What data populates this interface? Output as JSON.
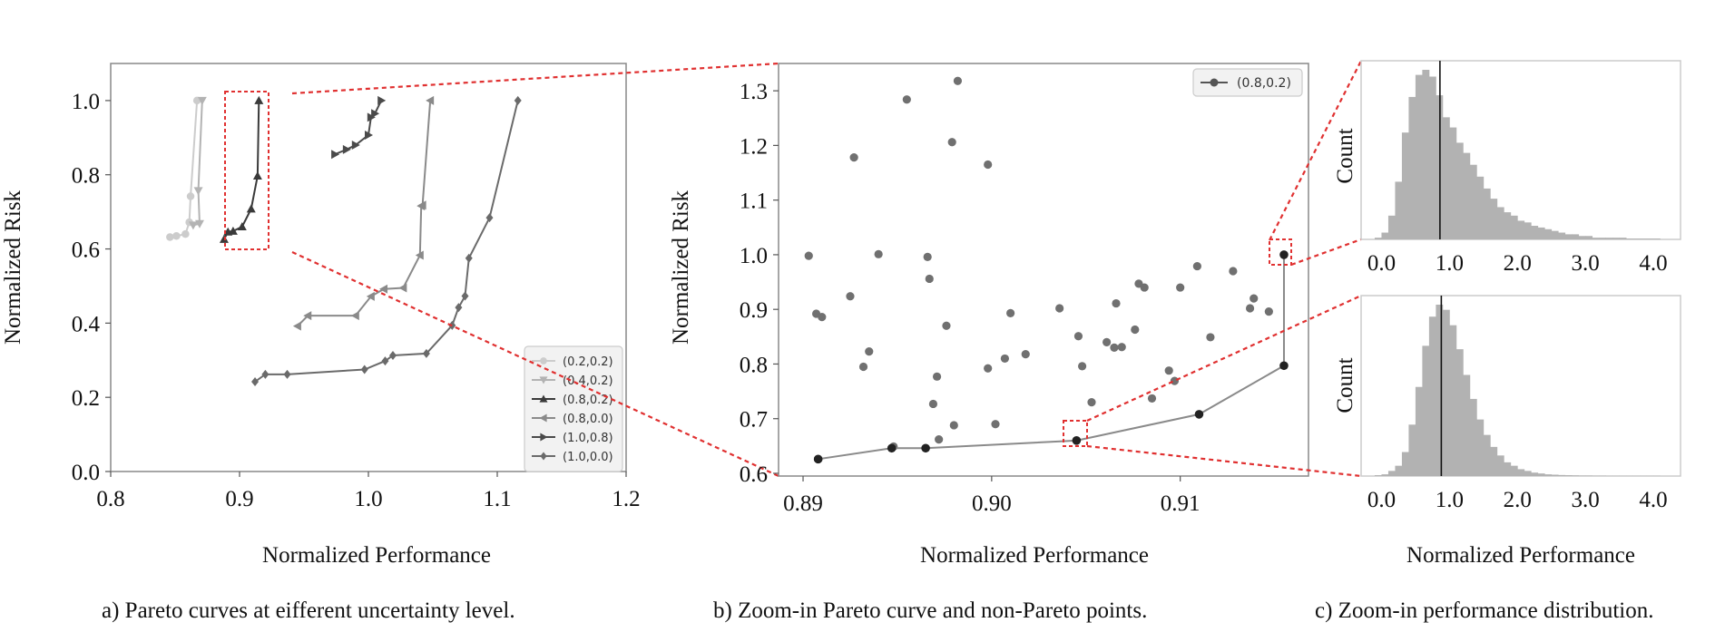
{
  "captions": {
    "a": "a) Pareto curves at eifferent uncertainty level.",
    "b": "b) Zoom-in Pareto curve and non-Pareto points.",
    "c": "c) Zoom-in performance distribution."
  },
  "chart_data": [
    {
      "id": "a",
      "type": "line",
      "xlabel": "Normalized Performance",
      "ylabel": "Normalized Risk",
      "xlim": [
        0.8,
        1.2
      ],
      "ylim": [
        0.0,
        1.1
      ],
      "xticks": [
        "0.8",
        "0.9",
        "1.0",
        "1.1",
        "1.2"
      ],
      "yticks": [
        "0.0",
        "0.2",
        "0.4",
        "0.6",
        "0.8",
        "1.0"
      ],
      "grid": false,
      "legend_position": "bottom-right",
      "series": [
        {
          "name": "(0.2,0.2)",
          "marker": "circle",
          "color": "#cccccc",
          "points": [
            [
              0.846,
              0.632
            ],
            [
              0.851,
              0.635
            ],
            [
              0.858,
              0.64
            ],
            [
              0.861,
              0.672
            ],
            [
              0.862,
              0.742
            ],
            [
              0.867,
              1.0
            ]
          ]
        },
        {
          "name": "(0.4,0.2)",
          "marker": "triangle-down",
          "color": "#b3b3b3",
          "points": [
            [
              0.864,
              0.664
            ],
            [
              0.869,
              0.668
            ],
            [
              0.868,
              0.757
            ],
            [
              0.871,
              1.0
            ]
          ]
        },
        {
          "name": "(0.8,0.2)",
          "marker": "triangle-up",
          "color": "#3a3a3a",
          "points": [
            [
              0.888,
              0.626
            ],
            [
              0.891,
              0.646
            ],
            [
              0.895,
              0.648
            ],
            [
              0.902,
              0.66
            ],
            [
              0.909,
              0.708
            ],
            [
              0.914,
              0.797
            ],
            [
              0.915,
              1.0
            ]
          ]
        },
        {
          "name": "(0.8,0.0)",
          "marker": "triangle-left",
          "color": "#8a8a8a",
          "points": [
            [
              0.945,
              0.392
            ],
            [
              0.953,
              0.42
            ],
            [
              0.99,
              0.42
            ],
            [
              1.002,
              0.472
            ],
            [
              1.012,
              0.492
            ],
            [
              1.027,
              0.495
            ],
            [
              1.04,
              0.583
            ],
            [
              1.041,
              0.716
            ],
            [
              1.042,
              0.718
            ],
            [
              1.048,
              1.0
            ]
          ]
        },
        {
          "name": "(1.0,0.8)",
          "marker": "triangle-right",
          "color": "#4a4a4a",
          "points": [
            [
              0.974,
              0.855
            ],
            [
              0.983,
              0.868
            ],
            [
              0.99,
              0.88
            ],
            [
              1.0,
              0.907
            ],
            [
              1.002,
              0.955
            ],
            [
              1.005,
              0.965
            ],
            [
              1.01,
              1.0
            ]
          ]
        },
        {
          "name": "(1.0,0.0)",
          "marker": "diamond",
          "color": "#6a6a6a",
          "points": [
            [
              0.912,
              0.242
            ],
            [
              0.92,
              0.262
            ],
            [
              0.937,
              0.262
            ],
            [
              0.997,
              0.275
            ],
            [
              1.013,
              0.298
            ],
            [
              1.019,
              0.313
            ],
            [
              1.045,
              0.318
            ],
            [
              1.065,
              0.394
            ],
            [
              1.07,
              0.442
            ],
            [
              1.075,
              0.473
            ],
            [
              1.078,
              0.575
            ],
            [
              1.094,
              0.684
            ],
            [
              1.116,
              1.0
            ]
          ]
        }
      ]
    },
    {
      "id": "b",
      "type": "scatter",
      "xlabel": "Normalized Performance",
      "ylabel": "Normalized Risk",
      "xlim": [
        0.8887,
        0.9168
      ],
      "ylim": [
        0.595,
        1.35
      ],
      "xticks": [
        "0.89",
        "0.90",
        "0.91"
      ],
      "yticks": [
        "0.6",
        "0.7",
        "0.8",
        "0.9",
        "1.0",
        "1.1",
        "1.2",
        "1.3"
      ],
      "grid": false,
      "legend_position": "top-right",
      "pareto_series": {
        "name": "(0.8,0.2)",
        "points": [
          [
            0.8908,
            0.626
          ],
          [
            0.8947,
            0.646
          ],
          [
            0.8965,
            0.646
          ],
          [
            0.9045,
            0.66
          ],
          [
            0.911,
            0.708
          ],
          [
            0.9155,
            0.797
          ],
          [
            0.9155,
            1.0
          ]
        ]
      },
      "non_pareto_points": [
        [
          0.8903,
          0.998
        ],
        [
          0.8907,
          0.892
        ],
        [
          0.891,
          0.886
        ],
        [
          0.8925,
          0.924
        ],
        [
          0.8927,
          1.178
        ],
        [
          0.8932,
          0.795
        ],
        [
          0.8935,
          0.823
        ],
        [
          0.894,
          1.001
        ],
        [
          0.8948,
          0.649
        ],
        [
          0.8955,
          1.284
        ],
        [
          0.8966,
          0.996
        ],
        [
          0.8967,
          0.956
        ],
        [
          0.8969,
          0.727
        ],
        [
          0.8971,
          0.777
        ],
        [
          0.8972,
          0.662
        ],
        [
          0.8976,
          0.87
        ],
        [
          0.8979,
          1.206
        ],
        [
          0.898,
          0.688
        ],
        [
          0.8982,
          1.318
        ],
        [
          0.8998,
          1.165
        ],
        [
          0.8998,
          0.792
        ],
        [
          0.9002,
          0.69
        ],
        [
          0.9007,
          0.81
        ],
        [
          0.901,
          0.893
        ],
        [
          0.9018,
          0.818
        ],
        [
          0.9036,
          0.902
        ],
        [
          0.9046,
          0.851
        ],
        [
          0.9048,
          0.796
        ],
        [
          0.9053,
          0.73
        ],
        [
          0.9061,
          0.84
        ],
        [
          0.9065,
          0.83
        ],
        [
          0.9066,
          0.911
        ],
        [
          0.9069,
          0.831
        ],
        [
          0.9076,
          0.863
        ],
        [
          0.9078,
          0.947
        ],
        [
          0.9081,
          0.94
        ],
        [
          0.9085,
          0.737
        ],
        [
          0.9094,
          0.788
        ],
        [
          0.9097,
          0.769
        ],
        [
          0.91,
          0.94
        ],
        [
          0.9109,
          0.979
        ],
        [
          0.9116,
          0.849
        ],
        [
          0.9128,
          0.97
        ],
        [
          0.9137,
          0.902
        ],
        [
          0.9139,
          0.92
        ],
        [
          0.9147,
          0.896
        ]
      ]
    },
    {
      "id": "c-top",
      "type": "bar",
      "title": "",
      "xlabel": "",
      "ylabel": "Count",
      "xlim": [
        -0.3,
        4.4
      ],
      "xticks": [
        "0.0",
        "1.0",
        "2.0",
        "3.0",
        "4.0"
      ],
      "vertical_line_x": 0.86,
      "bin_width": 0.1,
      "bin_start": -0.1,
      "values": [
        1,
        4,
        14,
        34,
        63,
        84,
        97,
        100,
        96,
        85,
        72,
        66,
        57,
        51,
        44,
        37,
        30,
        24,
        19,
        16,
        14,
        11,
        10,
        8,
        7,
        6,
        5,
        4,
        3,
        3,
        2,
        2,
        1,
        1,
        1,
        1,
        1,
        0.5,
        0.5,
        0.5,
        0.5,
        0.5
      ]
    },
    {
      "id": "c-bottom",
      "type": "bar",
      "title": "",
      "xlabel": "Normalized Performance",
      "ylabel": "Count",
      "xlim": [
        -0.3,
        4.4
      ],
      "xticks": [
        "0.0",
        "1.0",
        "2.0",
        "3.0",
        "4.0"
      ],
      "vertical_line_x": 0.88,
      "bin_width": 0.1,
      "bin_start": -0.1,
      "values": [
        0.5,
        1,
        3,
        6,
        14,
        30,
        52,
        76,
        93,
        100,
        97,
        88,
        74,
        59,
        45,
        33,
        24,
        17,
        12,
        8,
        6,
        4,
        3,
        2,
        1.5,
        1,
        0.8,
        0.6,
        0.5,
        0.4,
        0.3,
        0.3,
        0.2,
        0.2,
        0.1,
        0.1,
        0.1,
        0.1,
        0.1,
        0.1,
        0.1,
        0.1
      ]
    }
  ]
}
